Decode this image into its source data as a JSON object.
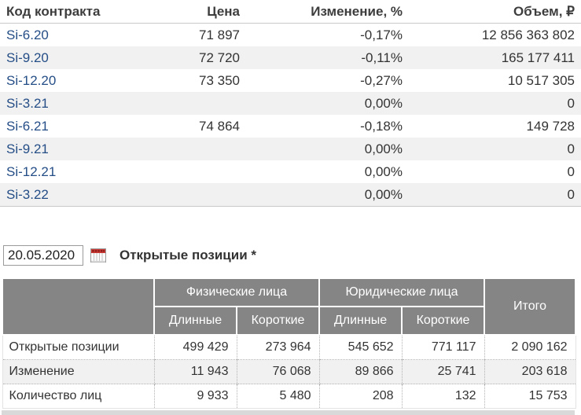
{
  "futures_table": {
    "columns": [
      "Код контракта",
      "Цена",
      "Изменение, %",
      "Объем, ₽"
    ],
    "rows": [
      {
        "code": "Si-6.20",
        "price": "71 897",
        "change": "-0,17%",
        "volume": "12 856 363 802"
      },
      {
        "code": "Si-9.20",
        "price": "72 720",
        "change": "-0,11%",
        "volume": "165 177 411"
      },
      {
        "code": "Si-12.20",
        "price": "73 350",
        "change": "-0,27%",
        "volume": "10 517 305"
      },
      {
        "code": "Si-3.21",
        "price": "",
        "change": "0,00%",
        "volume": "0"
      },
      {
        "code": "Si-6.21",
        "price": "74 864",
        "change": "-0,18%",
        "volume": "149 728"
      },
      {
        "code": "Si-9.21",
        "price": "",
        "change": "0,00%",
        "volume": "0"
      },
      {
        "code": "Si-12.21",
        "price": "",
        "change": "0,00%",
        "volume": "0"
      },
      {
        "code": "Si-3.22",
        "price": "",
        "change": "0,00%",
        "volume": "0"
      }
    ]
  },
  "positions_section": {
    "date_value": "20.05.2020",
    "calendar_icon": "calendar-icon",
    "title": "Открытые позиции *"
  },
  "positions_table": {
    "group_headers": [
      "Физические лица",
      "Юридические лица"
    ],
    "total_header": "Итого",
    "sub_headers": [
      "Длинные",
      "Короткие",
      "Длинные",
      "Короткие"
    ],
    "rows": [
      {
        "label": "Открытые позиции",
        "values": [
          "499 429",
          "273 964",
          "545 652",
          "771 117",
          "2 090 162"
        ]
      },
      {
        "label": "Изменение",
        "values": [
          "11 943",
          "76 068",
          "89 866",
          "25 741",
          "203 618"
        ]
      },
      {
        "label": "Количество лиц",
        "values": [
          "9 933",
          "5 480",
          "208",
          "132",
          "15 753"
        ]
      }
    ]
  },
  "colors": {
    "contract_link": "#254e87",
    "negative_change": "#cc2222",
    "table_header_bg": "#858585",
    "row_stripe": "#f1f1f1",
    "calendar_red": "#cc3b36"
  }
}
